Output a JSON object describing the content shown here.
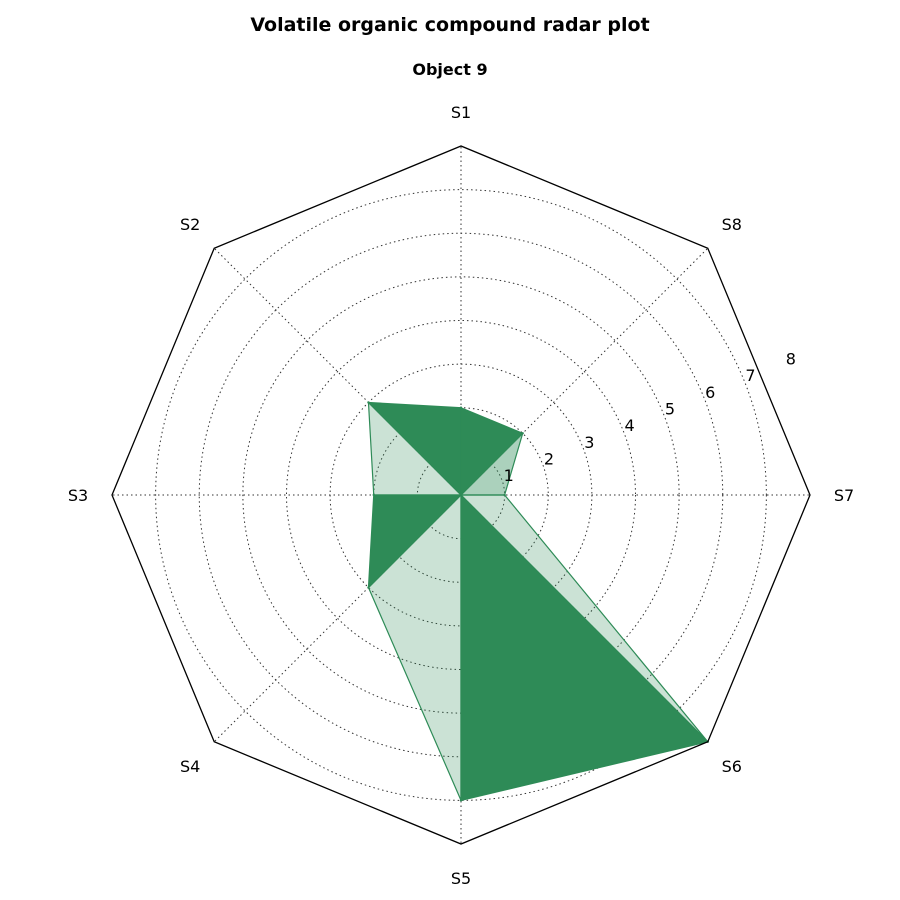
{
  "chart_data": {
    "type": "radar",
    "title": "Volatile organic compound radar plot",
    "subtitle": "Object 9",
    "axes": [
      "S1",
      "S2",
      "S3",
      "S4",
      "S5",
      "S6",
      "S7",
      "S8"
    ],
    "rmax": 8,
    "rticks": [
      1,
      2,
      3,
      4,
      5,
      6,
      7,
      8
    ],
    "grid": true,
    "fill_color": "#2e8b57",
    "values": [
      2.0,
      3.0,
      2.0,
      3.0,
      7.0,
      8.0,
      1.0,
      2.0
    ],
    "sectors": [
      {
        "from": "S1",
        "to": "S2",
        "opacity": 1.0
      },
      {
        "from": "S2",
        "to": "S3",
        "opacity": 0.25
      },
      {
        "from": "S3",
        "to": "S4",
        "opacity": 1.0
      },
      {
        "from": "S4",
        "to": "S5",
        "opacity": 0.25
      },
      {
        "from": "S5",
        "to": "S6",
        "opacity": 1.0
      },
      {
        "from": "S6",
        "to": "S7",
        "opacity": 0.25
      },
      {
        "from": "S7",
        "to": "S8",
        "opacity": 0.4
      },
      {
        "from": "S8",
        "to": "S1",
        "opacity": 1.0
      }
    ]
  }
}
